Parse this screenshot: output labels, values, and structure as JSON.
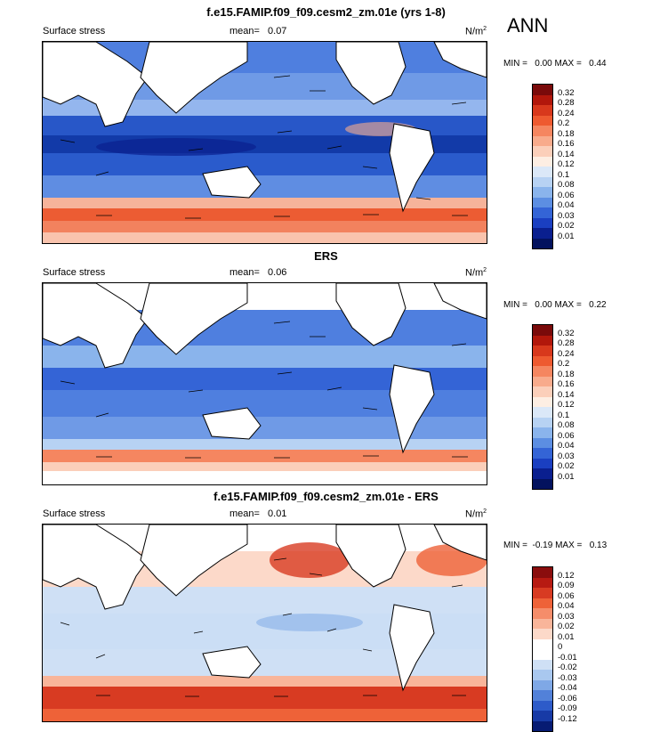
{
  "season": "ANN",
  "panels": [
    {
      "title": "f.e15.FAMIP.f09_f09.cesm2_zm.01e (yrs 1-8)",
      "variable": "Surface stress",
      "mean_label": "mean=",
      "mean_value": "0.07",
      "units": "N/m",
      "units_sup": "2",
      "minmax": "MIN =   0.00 MAX =   0.44",
      "legend": [
        "0.32",
        "0.28",
        "0.24",
        "0.2",
        "0.18",
        "0.16",
        "0.14",
        "0.12",
        "0.1",
        "0.08",
        "0.06",
        "0.04",
        "0.03",
        "0.02",
        "0.01"
      ]
    },
    {
      "title": "ERS",
      "variable": "Surface stress",
      "mean_label": "mean=",
      "mean_value": "0.06",
      "units": "N/m",
      "units_sup": "2",
      "minmax": "MIN =   0.00 MAX =   0.22",
      "legend": [
        "0.32",
        "0.28",
        "0.24",
        "0.2",
        "0.18",
        "0.16",
        "0.14",
        "0.12",
        "0.1",
        "0.08",
        "0.06",
        "0.04",
        "0.03",
        "0.02",
        "0.01"
      ]
    },
    {
      "title": "f.e15.FAMIP.f09_f09.cesm2_zm.01e - ERS",
      "variable": "Surface stress",
      "mean_label": "mean=",
      "mean_value": "0.01",
      "units": "N/m",
      "units_sup": "2",
      "minmax": "MIN =  -0.19 MAX =   0.13",
      "legend": [
        "0.12",
        "0.09",
        "0.06",
        "0.04",
        "0.03",
        "0.02",
        "0.01",
        "0",
        "-0.01",
        "-0.02",
        "-0.03",
        "-0.04",
        "-0.06",
        "-0.09",
        "-0.12"
      ]
    }
  ],
  "colors": {
    "seq": [
      "#7a0a0a",
      "#b2170b",
      "#d8381c",
      "#ee5a30",
      "#f58660",
      "#f8ab8c",
      "#fbcfba",
      "#fdeee3",
      "#dbe8f8",
      "#b7d2f3",
      "#8ab4ec",
      "#5c8ee2",
      "#3464d6",
      "#1a3fc1",
      "#0a1f8f",
      "#03125e"
    ],
    "div": [
      "#8a0d0d",
      "#b71a12",
      "#d83b22",
      "#ee6238",
      "#f58d6a",
      "#f9b59a",
      "#fcd9c9",
      "#ffffff",
      "#cfe0f5",
      "#a9c8ef",
      "#7fa8e6",
      "#5281d9",
      "#2d5bc9",
      "#173aa6",
      "#071b73"
    ]
  }
}
